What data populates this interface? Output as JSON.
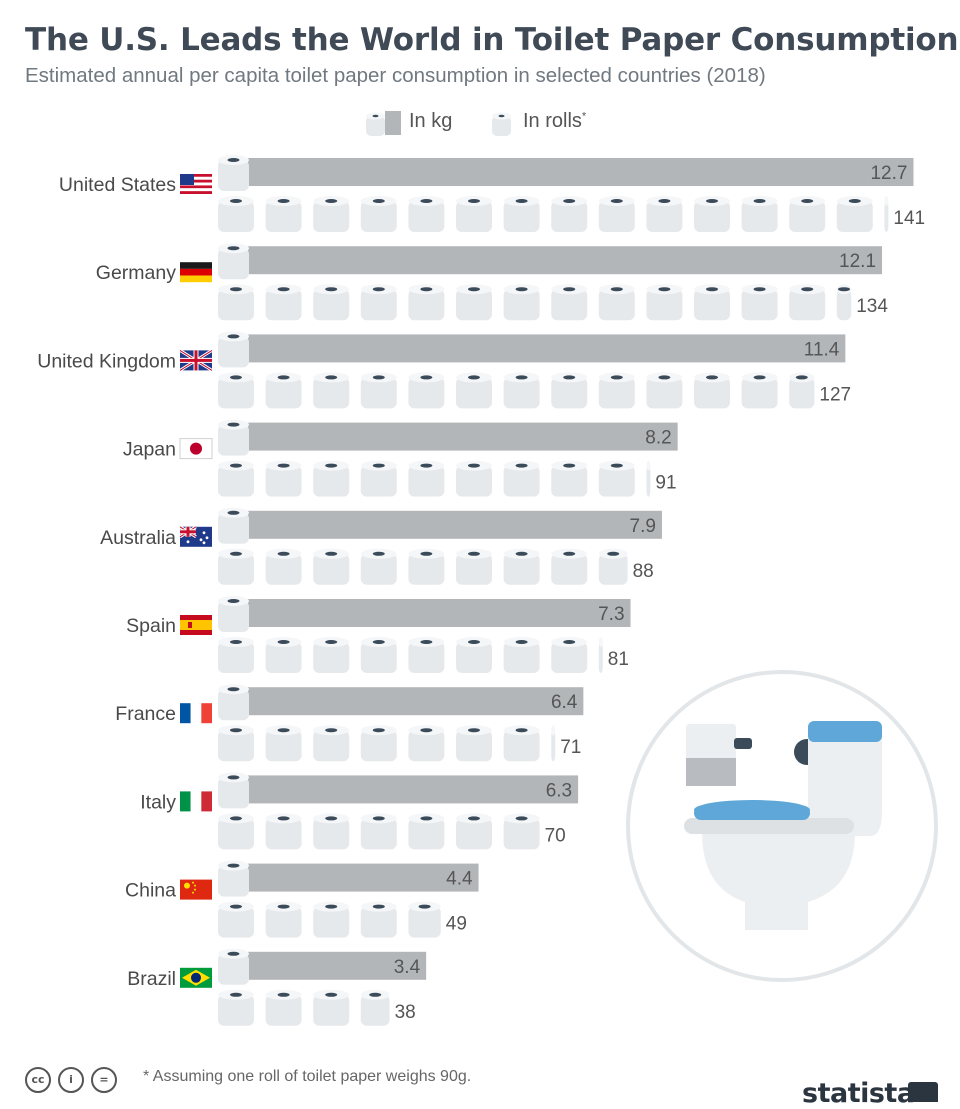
{
  "header": {
    "title": "The U.S. Leads the World in Toilet Paper Consumption",
    "subtitle": "Estimated annual per capita toilet paper consumption in selected countries (2018)"
  },
  "legend": {
    "kg_label": "In kg",
    "rolls_label": "In rolls",
    "rolls_marker": "*"
  },
  "colors": {
    "bar": "#b3b6b9",
    "roll_top": "#f4f6f8",
    "roll_body": "#e6e9ec",
    "roll_core": "#3b4b5a",
    "seat": "#5ea7d8"
  },
  "chart_data": {
    "type": "bar",
    "categories": [
      "United States",
      "Germany",
      "United Kingdom",
      "Japan",
      "Australia",
      "Spain",
      "France",
      "Italy",
      "China",
      "Brazil"
    ],
    "flags": [
      "us-flag-icon",
      "germany-flag-icon",
      "uk-flag-icon",
      "japan-flag-icon",
      "australia-flag-icon",
      "spain-flag-icon",
      "france-flag-icon",
      "italy-flag-icon",
      "china-flag-icon",
      "brazil-flag-icon"
    ],
    "series": [
      {
        "name": "In kg",
        "values": [
          12.7,
          12.1,
          11.4,
          8.2,
          7.9,
          7.3,
          6.4,
          6.3,
          4.4,
          3.4
        ]
      },
      {
        "name": "In rolls",
        "values": [
          141,
          134,
          127,
          91,
          88,
          81,
          71,
          70,
          49,
          38
        ]
      }
    ],
    "rolls_per_icon": 10,
    "value_labels_kg": [
      "12.7",
      "12.1",
      "11.4",
      "8.2",
      "7.9",
      "7.3",
      "6.4",
      "6.3",
      "4.4",
      "3.4"
    ],
    "value_labels_rolls": [
      "141",
      "134",
      "127",
      "91",
      "88",
      "81",
      "71",
      "70",
      "49",
      "38"
    ],
    "xlim_kg": [
      0,
      13
    ]
  },
  "footer": {
    "footnote": "* Assuming one roll of toilet paper weighs 90g.",
    "cc_icons": [
      "cc-icon",
      "by-icon",
      "nd-icon"
    ],
    "cc_labels": [
      "cc",
      "i",
      "="
    ],
    "brand": "statista"
  }
}
